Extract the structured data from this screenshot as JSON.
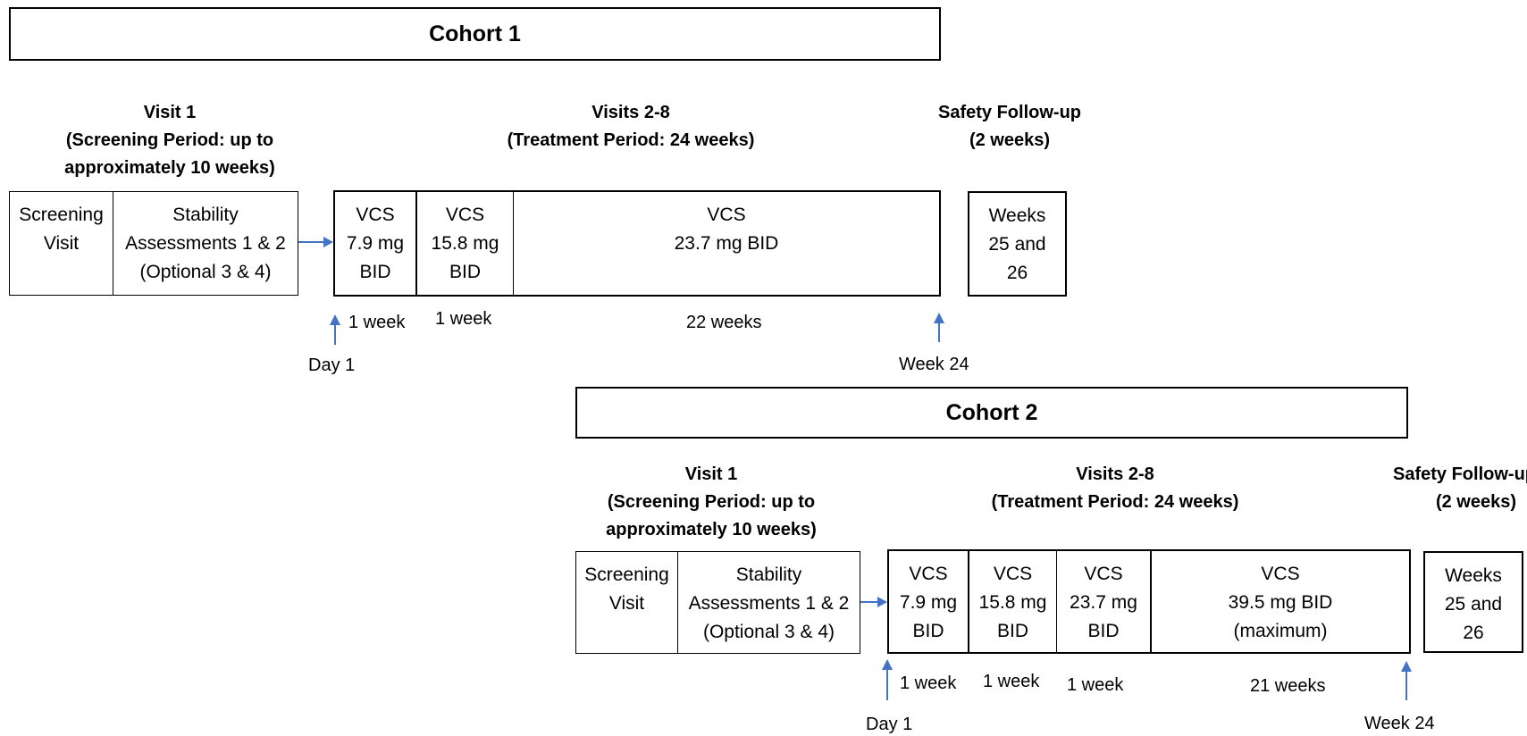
{
  "cohort1": {
    "title": "Cohort 1",
    "visit1_header": [
      "Visit 1",
      "(Screening Period: up to",
      "approximately  10 weeks)"
    ],
    "visits2_8_header": [
      "Visits 2-8",
      "(Treatment Period: 24 weeks)"
    ],
    "safety_header": [
      "Safety Follow-up",
      "(2 weeks)"
    ],
    "screening_box": {
      "screening_visit": [
        "Screening",
        "Visit"
      ],
      "stability": [
        "Stability",
        "Assessments 1 & 2",
        "(Optional 3 & 4)"
      ]
    },
    "treatment_box": [
      [
        "VCS",
        "7.9 mg",
        "BID"
      ],
      [
        "VCS",
        "15.8 mg",
        "BID"
      ],
      [
        "VCS",
        "23.7 mg BID"
      ]
    ],
    "safety_box": [
      "Weeks",
      "25 and",
      "26"
    ],
    "durations": [
      "1 week",
      "1 week",
      "22 weeks"
    ],
    "day1": "Day 1",
    "week24": "Week 24"
  },
  "cohort2": {
    "title": "Cohort 2",
    "visit1_header": [
      "Visit 1",
      "(Screening Period: up to",
      "approximately  10 weeks)"
    ],
    "visits2_8_header": [
      "Visits 2-8",
      "(Treatment Period: 24 weeks)"
    ],
    "safety_header": [
      "Safety Follow-up",
      "(2 weeks)"
    ],
    "screening_box": {
      "screening_visit": [
        "Screening",
        "Visit"
      ],
      "stability": [
        "Stability",
        "Assessments 1 & 2",
        "(Optional 3 & 4)"
      ]
    },
    "treatment_box": [
      [
        "VCS",
        "7.9 mg",
        "BID"
      ],
      [
        "VCS",
        "15.8 mg",
        "BID"
      ],
      [
        "VCS",
        "23.7 mg",
        "BID"
      ],
      [
        "VCS",
        "39.5 mg BID",
        "(maximum)"
      ]
    ],
    "safety_box": [
      "Weeks",
      "25 and",
      "26"
    ],
    "durations": [
      "1 week",
      "1 week",
      "1 week",
      "21 weeks"
    ],
    "day1": "Day 1",
    "week24": "Week 24"
  },
  "colors": {
    "arrow": "#4472C4",
    "line": "#000000"
  }
}
